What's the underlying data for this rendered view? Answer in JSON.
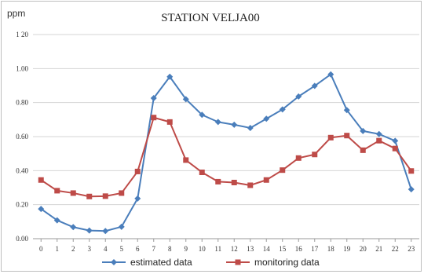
{
  "chart_data": {
    "type": "line",
    "title": "STATION VELJA00",
    "ylabel": "ppm",
    "xlabel": "",
    "x": [
      0,
      1,
      2,
      3,
      4,
      5,
      6,
      7,
      8,
      9,
      10,
      11,
      12,
      13,
      14,
      15,
      16,
      17,
      18,
      19,
      20,
      21,
      22,
      23
    ],
    "x_tick_labels": [
      "0",
      "1",
      "2",
      "3",
      "4",
      "5",
      "6",
      "7",
      "8",
      "9",
      "10",
      "11",
      "12",
      "13",
      "14",
      "15",
      "16",
      "17",
      "18",
      "19",
      "20",
      "21",
      "22",
      "23"
    ],
    "ylim": [
      0,
      1.2
    ],
    "y_ticks": [
      0,
      0.2,
      0.4,
      0.6,
      0.8,
      1.0,
      1.2
    ],
    "y_tick_labels": [
      "0.00",
      "0.20",
      "0.40",
      "0.60",
      "0.80",
      "1.00",
      "1 20"
    ],
    "grid": "horizontal",
    "legend_position": "bottom",
    "series": [
      {
        "name": "estimated data",
        "color": "#4a7ebb",
        "marker": "diamond",
        "values": [
          0.175,
          0.108,
          0.068,
          0.048,
          0.045,
          0.07,
          0.236,
          0.826,
          0.952,
          0.82,
          0.728,
          0.686,
          0.67,
          0.651,
          0.705,
          0.76,
          0.836,
          0.898,
          0.966,
          0.756,
          0.633,
          0.615,
          0.575,
          0.29
        ]
      },
      {
        "name": "monitoring data",
        "color": "#be4b48",
        "marker": "square",
        "values": [
          0.345,
          0.282,
          0.268,
          0.248,
          0.25,
          0.268,
          0.395,
          0.712,
          0.686,
          0.462,
          0.39,
          0.335,
          0.33,
          0.314,
          0.345,
          0.403,
          0.474,
          0.495,
          0.594,
          0.606,
          0.52,
          0.576,
          0.53,
          0.398
        ]
      }
    ]
  }
}
